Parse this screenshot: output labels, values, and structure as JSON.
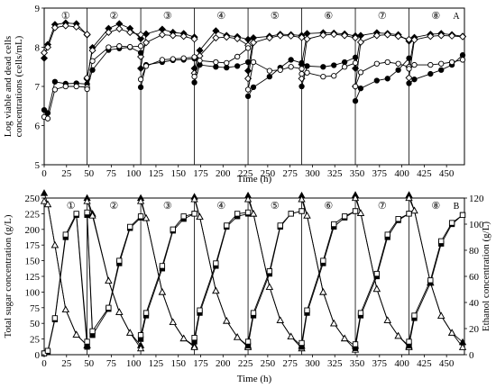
{
  "chart_data": [
    {
      "type": "line",
      "panel_label": "A",
      "xlabel": "Time (h)",
      "ylabel": "Log viable and dead cells concentrations (cells/mL)",
      "ylabel_lines": [
        "Log viable and dead cells",
        "concentrations (cells/mL)"
      ],
      "xlim": [
        0,
        470
      ],
      "ylim": [
        5,
        9
      ],
      "x_ticks": [
        0,
        25,
        50,
        75,
        100,
        125,
        150,
        175,
        200,
        225,
        250,
        275,
        300,
        325,
        350,
        375,
        400,
        425,
        450
      ],
      "y_ticks": [
        5,
        6,
        7,
        8,
        9
      ],
      "cycle_boundaries": [
        48,
        108,
        168,
        228,
        288,
        348,
        408
      ],
      "cycle_labels": [
        "①",
        "②",
        "③",
        "④",
        "⑤",
        "⑥",
        "⑦",
        "⑧"
      ],
      "cycle_label_x": [
        24,
        78,
        138,
        198,
        258,
        318,
        378,
        438
      ],
      "grid": false,
      "series": [
        {
          "marker": "filled-diamond",
          "x": [
            0,
            4,
            12,
            24,
            36,
            48,
            48,
            54,
            72,
            84,
            96,
            108,
            108,
            114,
            132,
            144,
            156,
            168,
            168,
            174,
            192,
            204,
            216,
            228,
            228,
            234,
            252,
            264,
            276,
            288,
            288,
            294,
            312,
            324,
            336,
            348,
            348,
            354,
            372,
            384,
            396,
            408,
            408,
            414,
            432,
            444,
            456,
            468
          ],
          "y": [
            7.72,
            8.07,
            8.58,
            8.62,
            8.6,
            8.32,
            7.19,
            7.99,
            8.48,
            8.6,
            8.48,
            8.22,
            7.46,
            8.34,
            8.46,
            8.38,
            8.35,
            8.26,
            7.46,
            7.92,
            8.42,
            8.3,
            8.27,
            8.2,
            7.4,
            8.24,
            8.28,
            8.33,
            8.32,
            8.3,
            7.56,
            8.35,
            8.37,
            8.36,
            8.34,
            8.29,
            7.46,
            8.3,
            8.37,
            8.35,
            8.32,
            8.16,
            7.5,
            8.25,
            8.33,
            8.35,
            8.32,
            8.28
          ]
        },
        {
          "marker": "open-diamond",
          "x": [
            0,
            4,
            12,
            24,
            36,
            48,
            48,
            54,
            72,
            84,
            96,
            108,
            108,
            114,
            132,
            144,
            156,
            168,
            168,
            174,
            192,
            204,
            216,
            228,
            228,
            234,
            252,
            264,
            276,
            288,
            288,
            294,
            312,
            324,
            336,
            348,
            348,
            354,
            372,
            384,
            396,
            408,
            408,
            414,
            432,
            444,
            456,
            468
          ],
          "y": [
            7.86,
            8.0,
            8.5,
            8.55,
            8.52,
            8.33,
            7.22,
            7.92,
            8.38,
            8.47,
            8.38,
            8.32,
            7.76,
            8.12,
            8.32,
            8.3,
            8.28,
            8.21,
            7.34,
            7.78,
            8.24,
            8.26,
            8.22,
            8.05,
            7.2,
            8.12,
            8.24,
            8.3,
            8.29,
            8.25,
            7.2,
            8.21,
            8.31,
            8.33,
            8.3,
            8.24,
            7.0,
            8.13,
            8.3,
            8.32,
            8.28,
            8.2,
            7.22,
            8.19,
            8.28,
            8.3,
            8.29,
            8.27
          ]
        },
        {
          "marker": "filled-circle",
          "x": [
            0,
            4,
            12,
            24,
            36,
            48,
            48,
            54,
            72,
            84,
            96,
            108,
            108,
            114,
            132,
            144,
            156,
            168,
            168,
            174,
            192,
            204,
            216,
            228,
            228,
            234,
            252,
            264,
            276,
            288,
            288,
            294,
            312,
            324,
            336,
            348,
            348,
            354,
            372,
            384,
            396,
            408,
            408,
            414,
            432,
            444,
            456,
            468
          ],
          "y": [
            6.4,
            6.32,
            7.12,
            7.07,
            7.08,
            7.06,
            6.96,
            7.42,
            7.93,
            7.97,
            8.0,
            7.86,
            6.98,
            7.55,
            7.62,
            7.67,
            7.68,
            7.71,
            7.1,
            7.55,
            7.5,
            7.48,
            7.52,
            7.62,
            6.75,
            6.98,
            7.25,
            7.48,
            7.68,
            7.6,
            7.0,
            7.52,
            7.5,
            7.54,
            7.62,
            7.74,
            6.63,
            6.95,
            7.15,
            7.2,
            7.42,
            7.72,
            7.08,
            7.18,
            7.32,
            7.42,
            7.55,
            7.8
          ]
        },
        {
          "marker": "open-circle",
          "x": [
            0,
            4,
            12,
            24,
            36,
            48,
            48,
            54,
            72,
            84,
            96,
            108,
            108,
            114,
            132,
            144,
            156,
            168,
            168,
            174,
            192,
            204,
            216,
            228,
            228,
            234,
            252,
            264,
            276,
            288,
            288,
            294,
            312,
            324,
            336,
            348,
            348,
            354,
            372,
            384,
            396,
            408,
            408,
            414,
            432,
            444,
            456,
            468
          ],
          "y": [
            6.22,
            6.18,
            6.92,
            7.0,
            7.0,
            6.98,
            6.93,
            7.65,
            8.0,
            8.03,
            8.01,
            8.03,
            7.18,
            7.52,
            7.68,
            7.7,
            7.72,
            7.75,
            7.25,
            7.66,
            7.62,
            7.6,
            7.76,
            7.98,
            6.92,
            7.62,
            7.4,
            7.42,
            7.5,
            7.45,
            7.32,
            7.35,
            7.25,
            7.27,
            7.5,
            7.6,
            7.0,
            7.36,
            7.58,
            7.62,
            7.58,
            7.5,
            7.45,
            7.55,
            7.55,
            7.58,
            7.62,
            7.68
          ]
        }
      ]
    },
    {
      "type": "line",
      "panel_label": "B",
      "xlabel": "Time (h)",
      "ylabel": "Total sugar concentration (g/L)",
      "y2label": "Ethanol concentration (g/L)",
      "xlim": [
        0,
        470
      ],
      "ylim": [
        0,
        250
      ],
      "y2lim": [
        0,
        120
      ],
      "x_ticks": [
        0,
        25,
        50,
        75,
        100,
        125,
        150,
        175,
        200,
        225,
        250,
        275,
        300,
        325,
        350,
        375,
        400,
        425,
        450
      ],
      "y_ticks": [
        0,
        25,
        50,
        75,
        100,
        125,
        150,
        175,
        200,
        225,
        250
      ],
      "y2_ticks": [
        0,
        20,
        40,
        60,
        80,
        100,
        120
      ],
      "cycle_boundaries": [
        48,
        108,
        168,
        228,
        288,
        348,
        408
      ],
      "cycle_labels": [
        "①",
        "②",
        "③",
        "④",
        "⑤",
        "⑥",
        "⑦",
        "⑧"
      ],
      "cycle_label_x": [
        30,
        78,
        138,
        198,
        258,
        318,
        378,
        438
      ],
      "grid": false,
      "series": [
        {
          "marker": "filled-triangle",
          "axis": "left",
          "x": [
            0,
            4,
            12,
            24,
            36,
            48,
            48,
            54,
            72,
            84,
            96,
            108,
            108,
            114,
            132,
            144,
            156,
            168,
            168,
            174,
            192,
            204,
            216,
            228,
            228,
            234,
            252,
            264,
            276,
            288,
            288,
            294,
            312,
            324,
            336,
            348,
            348,
            354,
            372,
            384,
            396,
            408,
            408,
            414,
            432,
            444,
            456,
            468
          ],
          "y": [
            258,
            240,
            175,
            72,
            32,
            15,
            250,
            225,
            118,
            68,
            35,
            15,
            250,
            218,
            100,
            52,
            26,
            14,
            252,
            220,
            102,
            54,
            28,
            14,
            254,
            225,
            108,
            55,
            29,
            14,
            254,
            222,
            100,
            50,
            26,
            14,
            255,
            226,
            105,
            55,
            30,
            14,
            255,
            230,
            115,
            62,
            35,
            20
          ]
        },
        {
          "marker": "open-triangle",
          "axis": "left",
          "x": [
            0,
            4,
            12,
            24,
            36,
            48,
            48,
            54,
            72,
            84,
            96,
            108,
            108,
            114,
            132,
            144,
            156,
            168,
            168,
            174,
            192,
            204,
            216,
            228,
            228,
            234,
            252,
            264,
            276,
            288,
            288,
            294,
            312,
            324,
            336,
            348,
            348,
            354,
            372,
            384,
            396,
            408,
            408,
            414,
            432,
            444,
            456,
            468
          ],
          "y": [
            245,
            240,
            175,
            72,
            32,
            15,
            245,
            222,
            118,
            68,
            35,
            10,
            245,
            218,
            100,
            52,
            26,
            12,
            248,
            220,
            102,
            54,
            28,
            12,
            248,
            225,
            108,
            55,
            29,
            10,
            248,
            222,
            100,
            50,
            26,
            8,
            250,
            226,
            105,
            55,
            30,
            12,
            250,
            230,
            115,
            62,
            35,
            12
          ]
        },
        {
          "marker": "filled-square",
          "axis": "right",
          "x": [
            0,
            4,
            12,
            24,
            36,
            48,
            48,
            54,
            72,
            84,
            96,
            108,
            108,
            114,
            132,
            144,
            156,
            168,
            168,
            174,
            192,
            204,
            216,
            228,
            228,
            234,
            252,
            264,
            276,
            288,
            288,
            294,
            312,
            324,
            336,
            348,
            348,
            354,
            372,
            384,
            396,
            408,
            408,
            414,
            432,
            444,
            456,
            468
          ],
          "y": [
            1,
            2,
            27,
            90,
            107,
            6,
            107,
            15,
            35,
            70,
            97,
            105,
            12,
            30,
            66,
            95,
            104,
            108,
            10,
            32,
            68,
            98,
            106,
            108,
            7,
            30,
            62,
            98,
            108,
            110,
            6,
            32,
            70,
            98,
            105,
            110,
            5,
            30,
            60,
            90,
            103,
            108,
            7,
            28,
            55,
            85,
            100,
            107
          ]
        },
        {
          "marker": "open-square",
          "axis": "right",
          "x": [
            0,
            4,
            12,
            24,
            36,
            48,
            48,
            54,
            72,
            84,
            96,
            108,
            108,
            114,
            132,
            144,
            156,
            168,
            168,
            174,
            192,
            204,
            216,
            228,
            228,
            234,
            252,
            264,
            276,
            288,
            288,
            294,
            312,
            324,
            336,
            348,
            348,
            354,
            372,
            384,
            396,
            408,
            408,
            414,
            432,
            444,
            456,
            468
          ],
          "y": [
            1,
            3,
            28,
            92,
            108,
            10,
            109,
            18,
            36,
            72,
            98,
            106,
            15,
            32,
            68,
            96,
            106,
            108,
            13,
            34,
            70,
            99,
            108,
            109,
            10,
            32,
            64,
            99,
            108,
            110,
            9,
            34,
            72,
            100,
            106,
            110,
            8,
            32,
            62,
            92,
            104,
            108,
            10,
            30,
            57,
            87,
            101,
            107
          ]
        }
      ]
    }
  ]
}
